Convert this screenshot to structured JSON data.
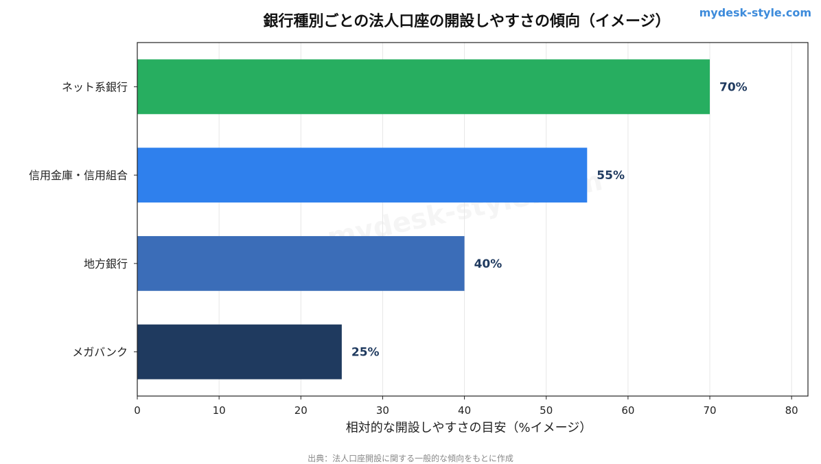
{
  "watermark": "mydesk-style.com",
  "source_note": "出典：法人口座開設に関する一般的な傾向をもとに作成",
  "colors": {
    "net_bank": "#27ae60",
    "shinkin": "#2f80ed",
    "regional": "#3b6db8",
    "mega": "#1f3a5f",
    "value_label": "#1f3a5f"
  },
  "chart_data": {
    "type": "bar",
    "orientation": "horizontal",
    "title": "銀行種別ごとの法人口座の開設しやすさの傾向（イメージ）",
    "xlabel": "相対的な開設しやすさの目安（%イメージ）",
    "ylabel": "",
    "categories": [
      "ネット系銀行",
      "信用金庫・信用組合",
      "地方銀行",
      "メガバンク"
    ],
    "values": [
      70,
      55,
      40,
      25
    ],
    "value_labels": [
      "70%",
      "55%",
      "40%",
      "25%"
    ],
    "xlim": [
      0,
      82
    ],
    "xticks": [
      0,
      10,
      20,
      30,
      40,
      50,
      60,
      70,
      80
    ],
    "grid": "vertical",
    "legend": "none"
  }
}
